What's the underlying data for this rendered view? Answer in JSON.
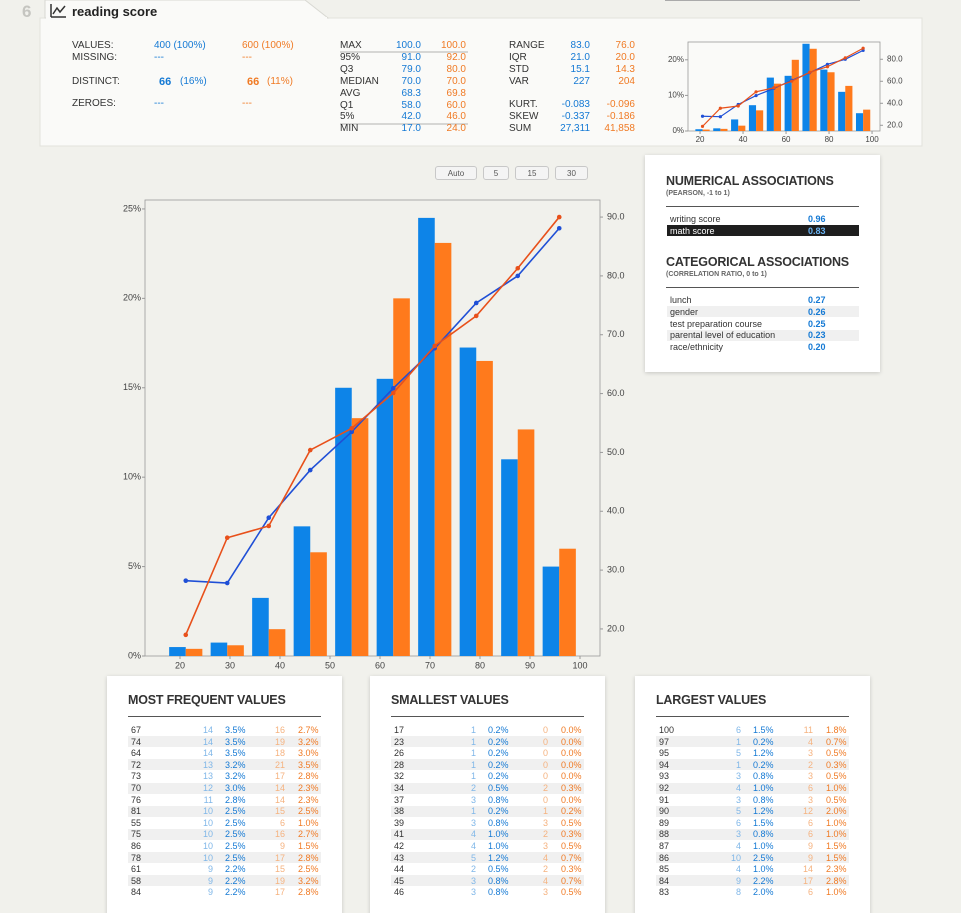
{
  "header": {
    "index": "6",
    "title": "reading score"
  },
  "summary": [
    [
      "VALUES:",
      "400 (100%)",
      "600 (100%)"
    ],
    [
      "MISSING:",
      "---",
      "---"
    ],
    [
      "DISTINCT:",
      "66",
      "(16%)",
      "66",
      "(11%)"
    ],
    [
      "ZEROES:",
      "---",
      "---"
    ]
  ],
  "quantiles": [
    [
      "MAX",
      "100.0",
      "100.0"
    ],
    [
      "95%",
      "91.0",
      "92.0"
    ],
    [
      "Q3",
      "79.0",
      "80.0"
    ],
    [
      "MEDIAN",
      "70.0",
      "70.0"
    ],
    [
      "AVG",
      "68.3",
      "69.8"
    ],
    [
      "Q1",
      "58.0",
      "60.0"
    ],
    [
      "5%",
      "42.0",
      "46.0"
    ],
    [
      "MIN",
      "17.0",
      "24.0"
    ]
  ],
  "moments": [
    [
      "RANGE",
      "83.0",
      "76.0"
    ],
    [
      "IQR",
      "21.0",
      "20.0"
    ],
    [
      "STD",
      "15.1",
      "14.3"
    ],
    [
      "VAR",
      "227",
      "204"
    ],
    [
      "KURT.",
      "-0.083",
      "-0.096"
    ],
    [
      "SKEW",
      "-0.337",
      "-0.186"
    ],
    [
      "SUM",
      "27,311",
      "41,858"
    ]
  ],
  "bin_buttons": [
    "Auto",
    "5",
    "15",
    "30"
  ],
  "associations": {
    "numerical": {
      "title": "NUMERICAL ASSOCIATIONS",
      "subtitle": "(PEARSON, -1 to 1)",
      "rows": [
        [
          "writing score",
          "0.96"
        ],
        [
          "math score",
          "0.83"
        ]
      ]
    },
    "categorical": {
      "title": "CATEGORICAL ASSOCIATIONS",
      "subtitle": "(CORRELATION RATIO, 0 to 1)",
      "rows": [
        [
          "lunch",
          "0.27"
        ],
        [
          "gender",
          "0.26"
        ],
        [
          "test preparation course",
          "0.25"
        ],
        [
          "parental level of education",
          "0.23"
        ],
        [
          "race/ethnicity",
          "0.20"
        ]
      ]
    }
  },
  "tables": [
    {
      "title": "MOST FREQUENT VALUES",
      "rows": [
        [
          "67",
          "14",
          "3.5%",
          "16",
          "2.7%"
        ],
        [
          "74",
          "14",
          "3.5%",
          "19",
          "3.2%"
        ],
        [
          "64",
          "14",
          "3.5%",
          "18",
          "3.0%"
        ],
        [
          "72",
          "13",
          "3.2%",
          "21",
          "3.5%"
        ],
        [
          "73",
          "13",
          "3.2%",
          "17",
          "2.8%"
        ],
        [
          "70",
          "12",
          "3.0%",
          "14",
          "2.3%"
        ],
        [
          "76",
          "11",
          "2.8%",
          "14",
          "2.3%"
        ],
        [
          "81",
          "10",
          "2.5%",
          "15",
          "2.5%"
        ],
        [
          "55",
          "10",
          "2.5%",
          "6",
          "1.0%"
        ],
        [
          "75",
          "10",
          "2.5%",
          "16",
          "2.7%"
        ],
        [
          "86",
          "10",
          "2.5%",
          "9",
          "1.5%"
        ],
        [
          "78",
          "10",
          "2.5%",
          "17",
          "2.8%"
        ],
        [
          "61",
          "9",
          "2.2%",
          "15",
          "2.5%"
        ],
        [
          "58",
          "9",
          "2.2%",
          "19",
          "3.2%"
        ],
        [
          "84",
          "9",
          "2.2%",
          "17",
          "2.8%"
        ]
      ]
    },
    {
      "title": "SMALLEST VALUES",
      "rows": [
        [
          "17",
          "1",
          "0.2%",
          "0",
          "0.0%"
        ],
        [
          "23",
          "1",
          "0.2%",
          "0",
          "0.0%"
        ],
        [
          "26",
          "1",
          "0.2%",
          "0",
          "0.0%"
        ],
        [
          "28",
          "1",
          "0.2%",
          "0",
          "0.0%"
        ],
        [
          "32",
          "1",
          "0.2%",
          "0",
          "0.0%"
        ],
        [
          "34",
          "2",
          "0.5%",
          "2",
          "0.3%"
        ],
        [
          "37",
          "3",
          "0.8%",
          "0",
          "0.0%"
        ],
        [
          "38",
          "1",
          "0.2%",
          "1",
          "0.2%"
        ],
        [
          "39",
          "3",
          "0.8%",
          "3",
          "0.5%"
        ],
        [
          "41",
          "4",
          "1.0%",
          "2",
          "0.3%"
        ],
        [
          "42",
          "4",
          "1.0%",
          "3",
          "0.5%"
        ],
        [
          "43",
          "5",
          "1.2%",
          "4",
          "0.7%"
        ],
        [
          "44",
          "2",
          "0.5%",
          "2",
          "0.3%"
        ],
        [
          "45",
          "3",
          "0.8%",
          "4",
          "0.7%"
        ],
        [
          "46",
          "3",
          "0.8%",
          "3",
          "0.5%"
        ]
      ]
    },
    {
      "title": "LARGEST VALUES",
      "rows": [
        [
          "100",
          "6",
          "1.5%",
          "11",
          "1.8%"
        ],
        [
          "97",
          "1",
          "0.2%",
          "4",
          "0.7%"
        ],
        [
          "95",
          "5",
          "1.2%",
          "3",
          "0.5%"
        ],
        [
          "94",
          "1",
          "0.2%",
          "2",
          "0.3%"
        ],
        [
          "93",
          "3",
          "0.8%",
          "3",
          "0.5%"
        ],
        [
          "92",
          "4",
          "1.0%",
          "6",
          "1.0%"
        ],
        [
          "91",
          "3",
          "0.8%",
          "3",
          "0.5%"
        ],
        [
          "90",
          "5",
          "1.2%",
          "12",
          "2.0%"
        ],
        [
          "89",
          "6",
          "1.5%",
          "6",
          "1.0%"
        ],
        [
          "88",
          "3",
          "0.8%",
          "6",
          "1.0%"
        ],
        [
          "87",
          "4",
          "1.0%",
          "9",
          "1.5%"
        ],
        [
          "86",
          "10",
          "2.5%",
          "9",
          "1.5%"
        ],
        [
          "85",
          "4",
          "1.0%",
          "14",
          "2.3%"
        ],
        [
          "84",
          "9",
          "2.2%",
          "17",
          "2.8%"
        ],
        [
          "83",
          "8",
          "2.0%",
          "6",
          "1.0%"
        ]
      ]
    }
  ],
  "chart_data": [
    {
      "type": "histogram",
      "bins": [
        17,
        25.3,
        33.6,
        41.9,
        50.2,
        58.5,
        66.8,
        75.1,
        83.4,
        91.7,
        100
      ],
      "series": [
        {
          "color": "#0d84e8",
          "values": [
            0.5,
            0.75,
            3.25,
            7.25,
            15,
            15.5,
            24.5,
            17.25,
            11,
            5
          ]
        },
        {
          "color": "#ff7a1c",
          "values": [
            0.4,
            0.6,
            1.5,
            5.8,
            13.3,
            20,
            23.1,
            16.5,
            12.67,
            6
          ]
        },
        {
          "color": "#1f4fd6",
          "axis": "y2",
          "values": [
            28.2,
            27.8,
            38.9,
            47.0,
            53.5,
            60.9,
            67.7,
            75.4,
            80.0,
            88.1
          ]
        },
        {
          "color": "#e8501a",
          "axis": "y2",
          "values": [
            19.0,
            35.5,
            37.5,
            50.4,
            54.1,
            60.1,
            68.1,
            73.2,
            81.3,
            90.0
          ]
        }
      ],
      "xlim": [
        14.4,
        103.7
      ],
      "xticks": [
        20,
        40,
        60,
        80,
        100
      ],
      "ylim": [
        0,
        25
      ],
      "yticks": [
        {
          "value": 0,
          "label": "0%"
        },
        {
          "value": 10,
          "label": "10%"
        },
        {
          "value": 20,
          "label": "20%"
        }
      ],
      "y2lim": [
        14.8,
        95.7
      ],
      "y2ticks": [
        {
          "value": 20,
          "label": "20.0"
        },
        {
          "value": 40,
          "label": "40.0"
        },
        {
          "value": 60,
          "label": "60.0"
        },
        {
          "value": 80,
          "label": "80.0"
        }
      ]
    },
    {
      "type": "histogram",
      "bins": [
        17,
        25.3,
        33.6,
        41.9,
        50.2,
        58.5,
        66.8,
        75.1,
        83.4,
        91.7,
        100
      ],
      "series": [
        {
          "color": "#0d84e8",
          "values": [
            0.5,
            0.75,
            3.25,
            7.25,
            15,
            15.5,
            24.5,
            17.25,
            11,
            5
          ]
        },
        {
          "color": "#ff7a1c",
          "values": [
            0.4,
            0.6,
            1.5,
            5.8,
            13.3,
            20,
            23.1,
            16.5,
            12.67,
            6
          ]
        },
        {
          "color": "#1f4fd6",
          "axis": "y2",
          "values": [
            28.2,
            27.8,
            38.9,
            47.0,
            53.5,
            60.9,
            67.7,
            75.4,
            80.0,
            88.1
          ]
        },
        {
          "color": "#e8501a",
          "axis": "y2",
          "values": [
            19.0,
            35.5,
            37.5,
            50.4,
            54.1,
            60.1,
            68.1,
            73.2,
            81.3,
            90.0
          ]
        }
      ],
      "xlim": [
        13,
        104
      ],
      "xticks": [
        20,
        30,
        40,
        50,
        60,
        70,
        80,
        90,
        100
      ],
      "ylim": [
        0,
        25.5
      ],
      "yticks": [
        {
          "value": 0,
          "label": "0%"
        },
        {
          "value": 5,
          "label": "5%"
        },
        {
          "value": 10,
          "label": "10%"
        },
        {
          "value": 15,
          "label": "15%"
        },
        {
          "value": 20,
          "label": "20%"
        },
        {
          "value": 25,
          "label": "25%"
        }
      ],
      "y2lim": [
        15.4,
        92.9
      ],
      "y2ticks": [
        {
          "value": 20,
          "label": "20.0"
        },
        {
          "value": 30,
          "label": "30.0"
        },
        {
          "value": 40,
          "label": "40.0"
        },
        {
          "value": 50,
          "label": "50.0"
        },
        {
          "value": 60,
          "label": "60.0"
        },
        {
          "value": 70,
          "label": "70.0"
        },
        {
          "value": 80,
          "label": "80.0"
        },
        {
          "value": 90,
          "label": "90.0"
        }
      ]
    }
  ]
}
